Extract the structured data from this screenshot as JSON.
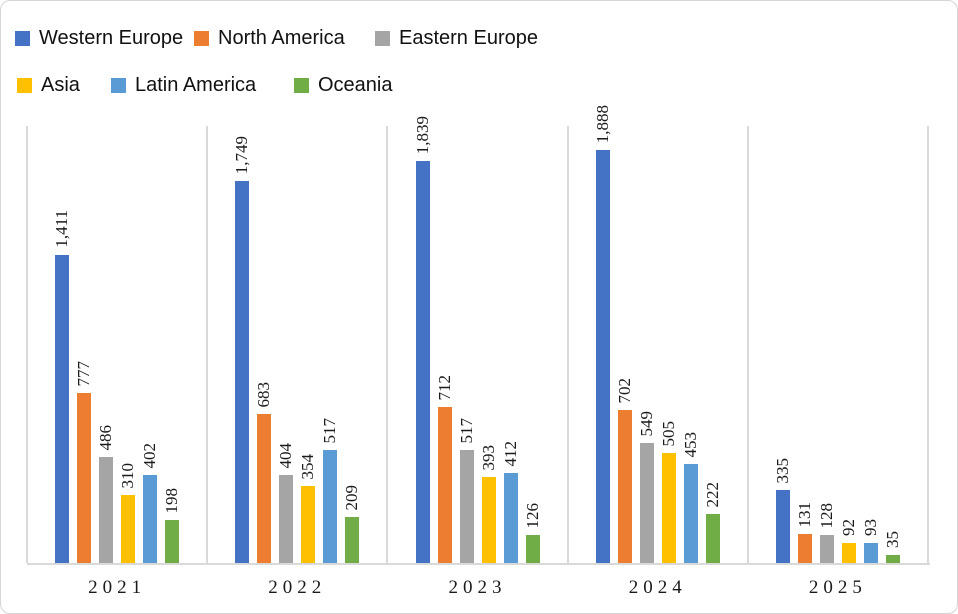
{
  "chart_data": {
    "type": "bar",
    "categories": [
      "2021",
      "2022",
      "2023",
      "2024",
      "2025"
    ],
    "series": [
      {
        "name": "Western Europe",
        "color": "#4472C4",
        "values": [
          1411,
          1749,
          1839,
          1888,
          335
        ]
      },
      {
        "name": "North America",
        "color": "#ED7D31",
        "values": [
          777,
          683,
          712,
          702,
          131
        ]
      },
      {
        "name": "Eastern Europe",
        "color": "#A5A5A5",
        "values": [
          486,
          404,
          517,
          549,
          128
        ]
      },
      {
        "name": "Asia",
        "color": "#FFC000",
        "values": [
          310,
          354,
          393,
          505,
          92
        ]
      },
      {
        "name": "Latin America",
        "color": "#5B9BD5",
        "values": [
          402,
          517,
          412,
          453,
          93
        ]
      },
      {
        "name": "Oceania",
        "color": "#70AD47",
        "values": [
          198,
          209,
          126,
          222,
          35
        ]
      }
    ],
    "data_labels": [
      "1,411",
      "777",
      "486",
      "310",
      "402",
      "198",
      "1,749",
      "683",
      "404",
      "354",
      "517",
      "209",
      "1,839",
      "712",
      "517",
      "393",
      "412",
      "126",
      "1,888",
      "702",
      "549",
      "505",
      "453",
      "222",
      "335",
      "131",
      "128",
      "92",
      "93",
      "35"
    ],
    "title": "",
    "xlabel": "",
    "ylabel": "",
    "ylim": [
      0,
      2000
    ],
    "grid": "vertical-category-dividers",
    "legend_position": "top-left",
    "colors": {
      "divider": "#d9d9d9",
      "axis": "#d9d9d9",
      "label_text": "#1a1a1a"
    }
  }
}
